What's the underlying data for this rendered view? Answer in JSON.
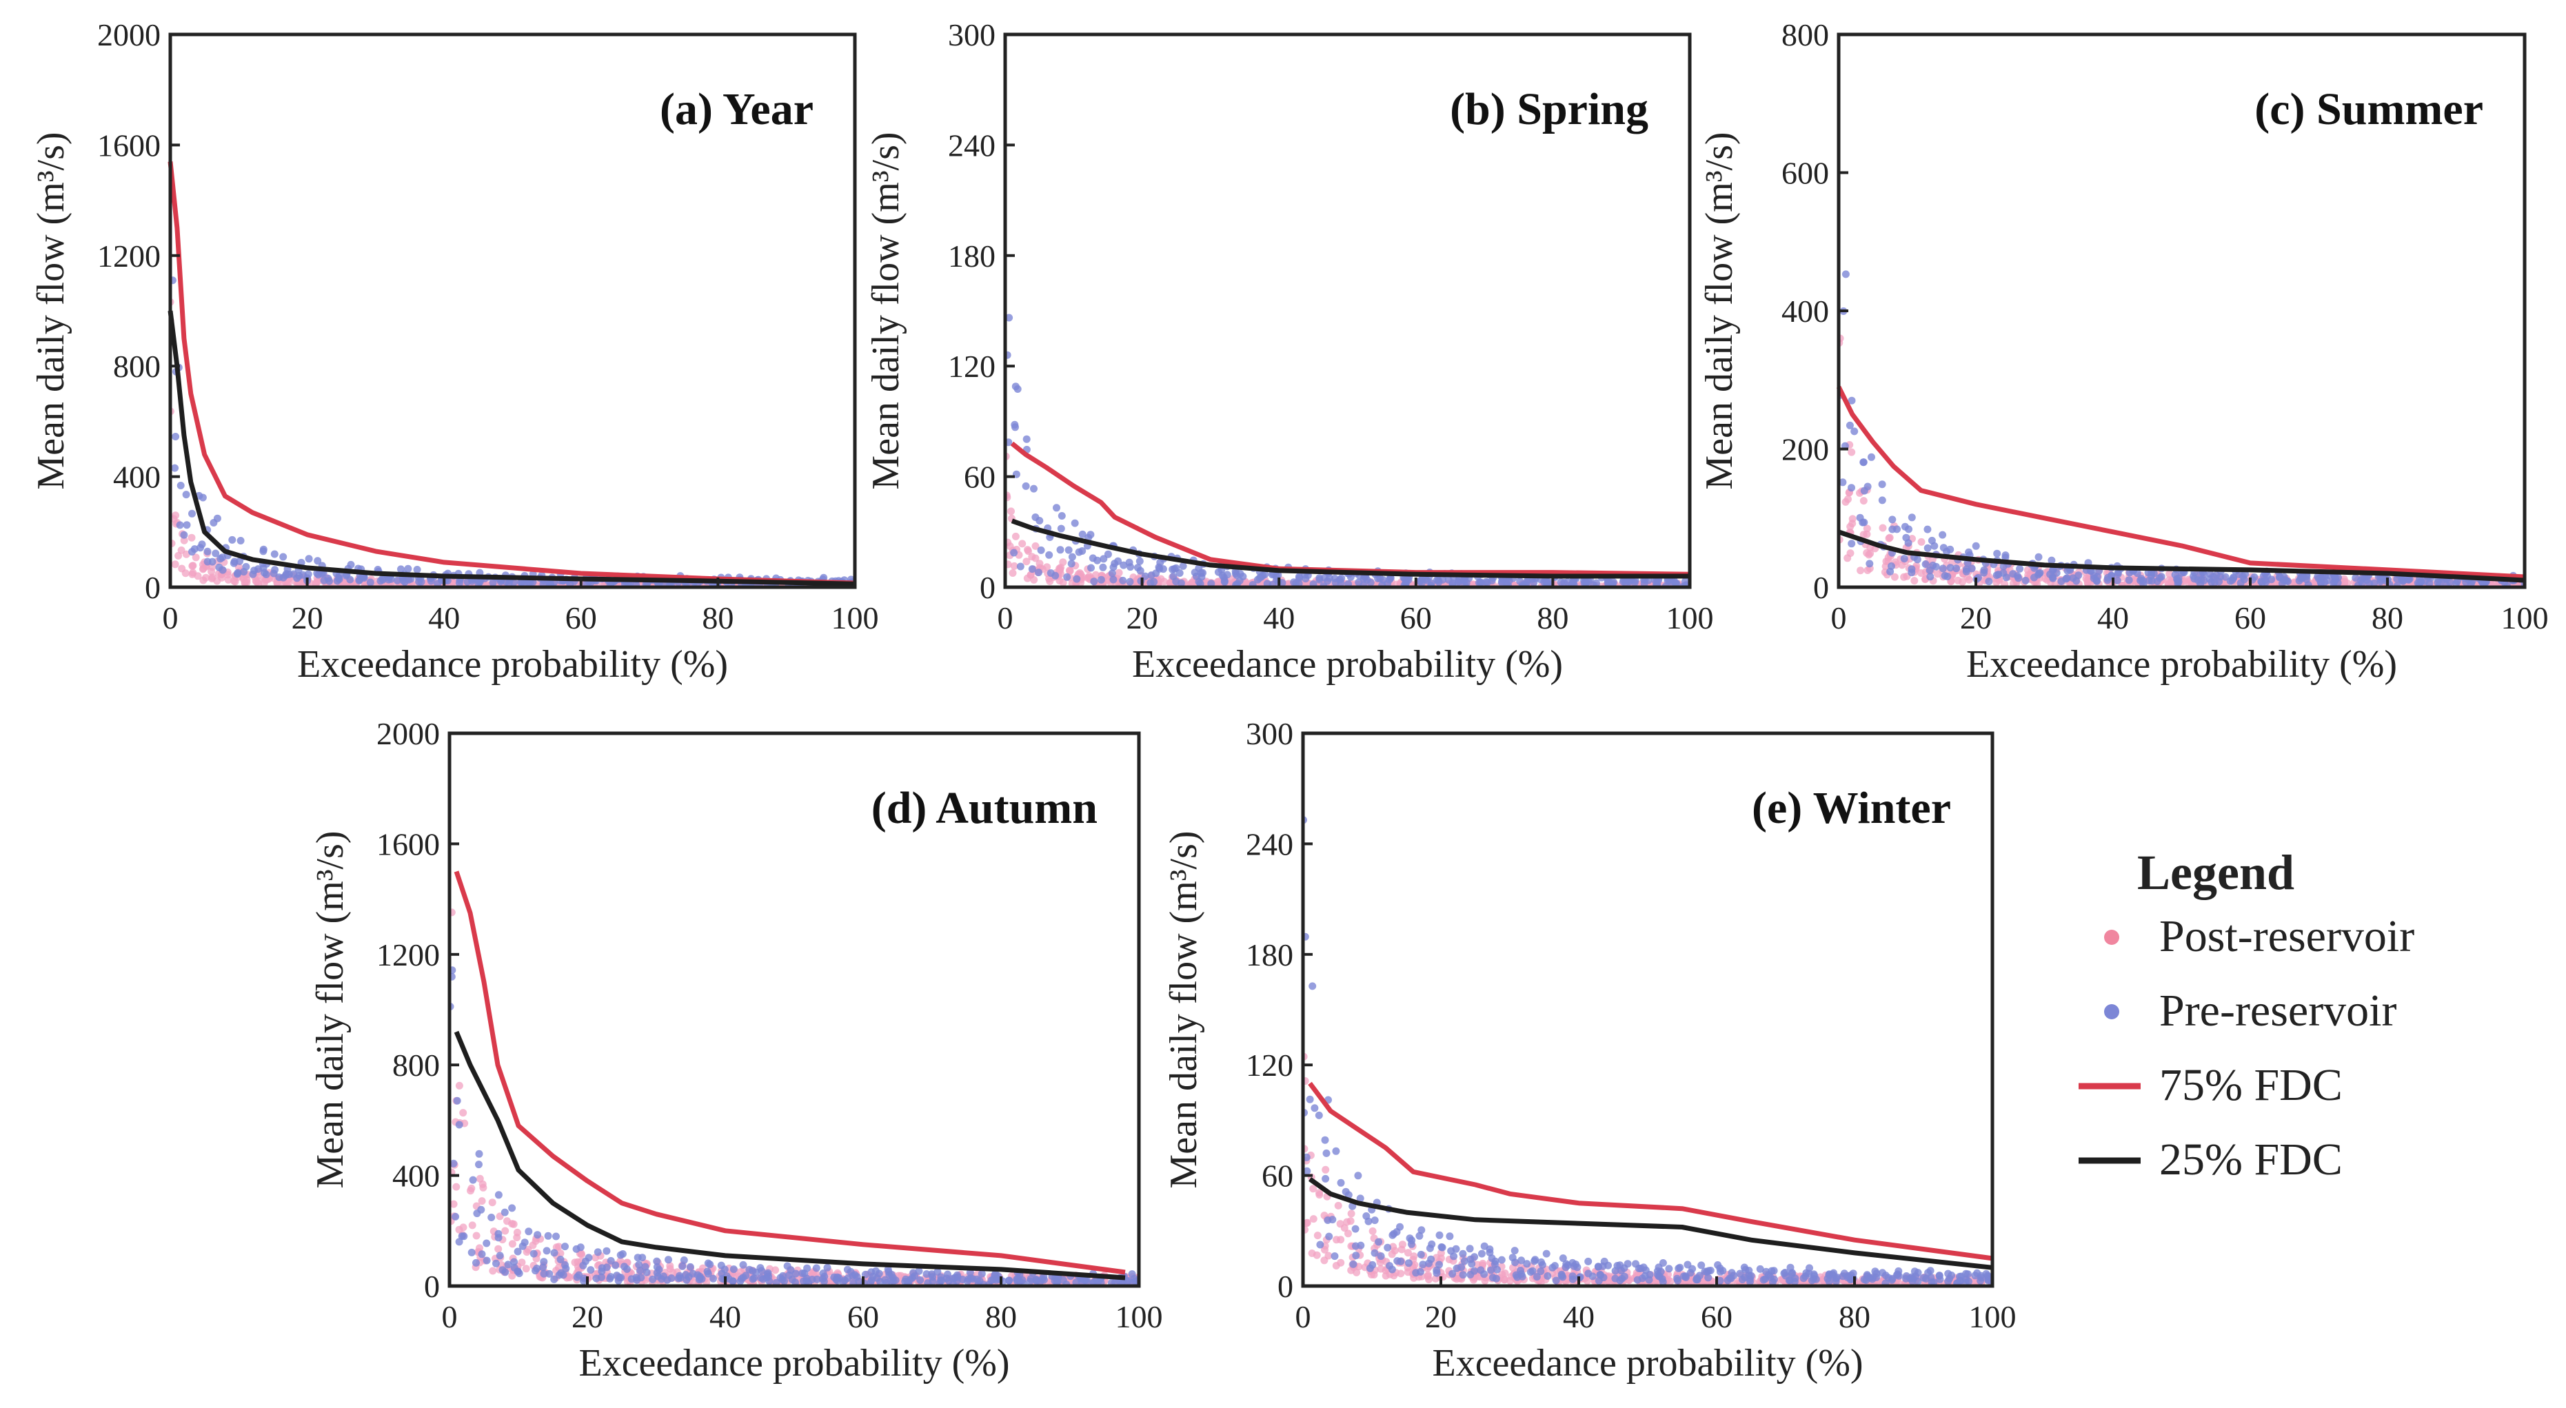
{
  "colors": {
    "post_reservoir": "#f2a1c1",
    "pre_reservoir": "#7c86d6",
    "fdc75": "#d93a4b",
    "fdc25": "#1e1e1e"
  },
  "legend": {
    "title": "Legend",
    "items": [
      {
        "label": "Post-reservoir",
        "kind": "dot",
        "color": "#f0869f"
      },
      {
        "label": "Pre-reservoir",
        "kind": "dot",
        "color": "#7c86d6"
      },
      {
        "label": "75%  FDC",
        "kind": "line",
        "color": "#d93a4b"
      },
      {
        "label": "25%  FDC",
        "kind": "line",
        "color": "#1e1e1e"
      }
    ]
  },
  "chart_data": [
    {
      "id": "a",
      "type": "scatter",
      "title": "(a) Year",
      "xlabel": "Exceedance probability (%)",
      "ylabel": "Mean daily flow (m³/s)",
      "xlim": [
        0,
        100
      ],
      "ylim": [
        0,
        2000
      ],
      "xticks": [
        "0",
        "20",
        "40",
        "60",
        "80",
        "100"
      ],
      "yticks": [
        "0",
        "400",
        "800",
        "1200",
        "1600",
        "2000"
      ],
      "post_scale": 1200,
      "post_decay": 1.2,
      "pre_scale": 1800,
      "pre_decay": 1.0,
      "fdc75": [
        [
          0,
          1540
        ],
        [
          1,
          1300
        ],
        [
          2,
          900
        ],
        [
          3,
          700
        ],
        [
          5,
          480
        ],
        [
          8,
          330
        ],
        [
          12,
          270
        ],
        [
          20,
          190
        ],
        [
          30,
          130
        ],
        [
          40,
          90
        ],
        [
          60,
          50
        ],
        [
          80,
          30
        ],
        [
          100,
          15
        ]
      ],
      "fdc25": [
        [
          0,
          1000
        ],
        [
          1,
          800
        ],
        [
          2,
          550
        ],
        [
          3,
          380
        ],
        [
          5,
          200
        ],
        [
          8,
          130
        ],
        [
          12,
          100
        ],
        [
          20,
          70
        ],
        [
          30,
          50
        ],
        [
          40,
          40
        ],
        [
          60,
          30
        ],
        [
          80,
          22
        ],
        [
          100,
          12
        ]
      ]
    },
    {
      "id": "b",
      "type": "scatter",
      "title": "(b) Spring",
      "xlabel": "Exceedance probability (%)",
      "ylabel": "Mean daily flow (m³/s)",
      "xlim": [
        0,
        100
      ],
      "ylim": [
        0,
        300
      ],
      "xticks": [
        "0",
        "20",
        "40",
        "60",
        "80",
        "100"
      ],
      "yticks": [
        "0",
        "60",
        "120",
        "180",
        "240",
        "300"
      ],
      "post_scale": 80,
      "post_decay": 0.6,
      "pre_scale": 220,
      "pre_decay": 0.7,
      "fdc75": [
        [
          1,
          78
        ],
        [
          3,
          72
        ],
        [
          6,
          65
        ],
        [
          10,
          55
        ],
        [
          14,
          46
        ],
        [
          16,
          38
        ],
        [
          22,
          27
        ],
        [
          30,
          15
        ],
        [
          40,
          10
        ],
        [
          60,
          8
        ],
        [
          80,
          8
        ],
        [
          100,
          7
        ]
      ],
      "fdc25": [
        [
          1,
          36
        ],
        [
          4,
          32
        ],
        [
          8,
          28
        ],
        [
          15,
          22
        ],
        [
          20,
          18
        ],
        [
          30,
          12
        ],
        [
          40,
          9
        ],
        [
          60,
          7
        ],
        [
          80,
          6
        ],
        [
          100,
          6
        ]
      ]
    },
    {
      "id": "c",
      "type": "scatter",
      "title": "(c) Summer",
      "xlabel": "Exceedance probability (%)",
      "ylabel": "Mean daily flow (m³/s)",
      "xlim": [
        0,
        100
      ],
      "ylim": [
        0,
        800
      ],
      "xticks": [
        "0",
        "20",
        "40",
        "60",
        "80",
        "100"
      ],
      "yticks": [
        "0",
        "200",
        "400",
        "600",
        "800"
      ],
      "post_scale": 450,
      "post_decay": 0.5,
      "pre_scale": 780,
      "pre_decay": 0.55,
      "fdc75": [
        [
          0,
          290
        ],
        [
          2,
          250
        ],
        [
          5,
          210
        ],
        [
          8,
          175
        ],
        [
          12,
          140
        ],
        [
          20,
          120
        ],
        [
          30,
          100
        ],
        [
          40,
          80
        ],
        [
          50,
          60
        ],
        [
          60,
          35
        ],
        [
          80,
          25
        ],
        [
          100,
          15
        ]
      ],
      "fdc25": [
        [
          0,
          80
        ],
        [
          3,
          70
        ],
        [
          6,
          60
        ],
        [
          10,
          50
        ],
        [
          20,
          40
        ],
        [
          30,
          32
        ],
        [
          40,
          28
        ],
        [
          60,
          25
        ],
        [
          80,
          20
        ],
        [
          100,
          10
        ]
      ]
    },
    {
      "id": "d",
      "type": "scatter",
      "title": "(d) Autumn",
      "xlabel": "Exceedance probability (%)",
      "ylabel": "Mean daily flow (m³/s)",
      "xlim": [
        0,
        100
      ],
      "ylim": [
        0,
        2000
      ],
      "xticks": [
        "0",
        "20",
        "40",
        "60",
        "80",
        "100"
      ],
      "yticks": [
        "0",
        "400",
        "800",
        "1200",
        "1600",
        "2000"
      ],
      "post_scale": 1800,
      "post_decay": 0.7,
      "pre_scale": 1950,
      "pre_decay": 0.6,
      "fdc75": [
        [
          1,
          1500
        ],
        [
          3,
          1350
        ],
        [
          5,
          1100
        ],
        [
          7,
          800
        ],
        [
          10,
          580
        ],
        [
          15,
          470
        ],
        [
          20,
          380
        ],
        [
          25,
          300
        ],
        [
          30,
          260
        ],
        [
          40,
          200
        ],
        [
          60,
          150
        ],
        [
          80,
          110
        ],
        [
          98,
          50
        ]
      ],
      "fdc25": [
        [
          1,
          920
        ],
        [
          3,
          800
        ],
        [
          5,
          700
        ],
        [
          7,
          600
        ],
        [
          10,
          420
        ],
        [
          15,
          300
        ],
        [
          20,
          220
        ],
        [
          25,
          160
        ],
        [
          30,
          140
        ],
        [
          40,
          110
        ],
        [
          60,
          80
        ],
        [
          80,
          60
        ],
        [
          98,
          30
        ]
      ]
    },
    {
      "id": "e",
      "type": "scatter",
      "title": "(e) Winter",
      "xlabel": "Exceedance probability (%)",
      "ylabel": "Mean daily flow (m³/s)",
      "xlim": [
        0,
        100
      ],
      "ylim": [
        0,
        300
      ],
      "xticks": [
        "0",
        "20",
        "40",
        "60",
        "80",
        "100"
      ],
      "yticks": [
        "0",
        "60",
        "120",
        "180",
        "240",
        "300"
      ],
      "post_scale": 130,
      "post_decay": 0.35,
      "pre_scale": 270,
      "pre_decay": 0.45,
      "fdc75": [
        [
          1,
          110
        ],
        [
          4,
          95
        ],
        [
          8,
          85
        ],
        [
          12,
          75
        ],
        [
          16,
          62
        ],
        [
          25,
          55
        ],
        [
          30,
          50
        ],
        [
          40,
          45
        ],
        [
          55,
          42
        ],
        [
          65,
          35
        ],
        [
          80,
          25
        ],
        [
          100,
          15
        ]
      ],
      "fdc25": [
        [
          1,
          58
        ],
        [
          4,
          50
        ],
        [
          8,
          45
        ],
        [
          15,
          40
        ],
        [
          25,
          36
        ],
        [
          40,
          34
        ],
        [
          55,
          32
        ],
        [
          65,
          25
        ],
        [
          80,
          18
        ],
        [
          100,
          10
        ]
      ]
    }
  ]
}
